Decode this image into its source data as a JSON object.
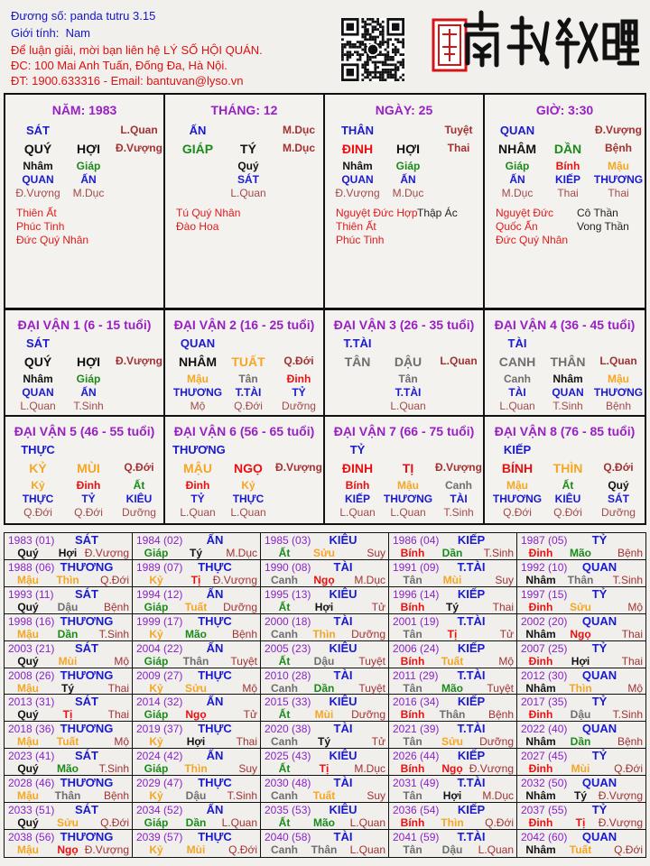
{
  "header": {
    "line1": "Đương số: panda tutru 3.15",
    "gender_label": "Giới tính:",
    "gender": "Nam",
    "contact1": "Để luận giải, mời bạn liên hệ LÝ SỐ HỘI QUÁN.",
    "contact2": "ĐC: 100 Mai Anh Tuấn, Đống Đa, Hà Nội.",
    "contact3": "ĐT: 1900.633316 - Email: bantuvan@lyso.vn",
    "logo_text": "南越數理",
    "qr_icon": "qr-code"
  },
  "colors": {
    "wood": "#1a8a1a",
    "fire": "#e81010",
    "earth": "#f5a623",
    "metal": "#6e6e6e",
    "water": "#111111",
    "title": "#9a1fc4",
    "god": "#1a1ad0"
  },
  "element_of": {
    "giáp": "wood",
    "ất": "wood",
    "dần": "wood",
    "mão": "wood",
    "bính": "fire",
    "đinh": "fire",
    "tị": "fire",
    "ngọ": "fire",
    "mậu": "earth",
    "kỷ": "earth",
    "thìn": "earth",
    "tuất": "earth",
    "sửu": "earth",
    "mùi": "earth",
    "canh": "metal",
    "tân": "metal",
    "thân": "metal",
    "dậu": "metal",
    "nhâm": "water",
    "quý": "water",
    "tý": "water",
    "hợi": "water"
  },
  "pillars": [
    {
      "title": "NĂM: 1983",
      "god": "SÁT",
      "stage_top": "L.Quan",
      "stem": "QUÝ",
      "branch": "HỢI",
      "stage": "Đ.Vượng",
      "hidden": [
        {
          "stem": "Nhâm",
          "god": "QUAN",
          "stage": "Đ.Vượng"
        },
        {
          "stem": "Giáp",
          "god": "ẤN",
          "stage": "M.Dục"
        }
      ],
      "stars": [
        "Thiên Ất",
        "Phúc Tinh",
        "Đức Quý Nhân"
      ],
      "stars2": []
    },
    {
      "title": "THÁNG: 12",
      "god": "ẤN",
      "stage_top": "M.Dục",
      "stem": "GIÁP",
      "branch": "TÝ",
      "stage": "M.Dục",
      "hidden": [
        {
          "stem": "Quý",
          "god": "SÁT",
          "stage": "L.Quan"
        }
      ],
      "stars": [
        "Tú Quý Nhân",
        "Đào Hoa"
      ],
      "stars2": []
    },
    {
      "title": "NGÀY: 25",
      "god": "THÂN",
      "stage_top": "Tuyệt",
      "stem": "ĐINH",
      "branch": "HỢI",
      "stage": "Thai",
      "hidden": [
        {
          "stem": "Nhâm",
          "god": "QUAN",
          "stage": "Đ.Vượng"
        },
        {
          "stem": "Giáp",
          "god": "ẤN",
          "stage": "M.Dục"
        }
      ],
      "stars": [
        "Nguyệt Đức Hợp",
        "Thiên Ất",
        "Phúc Tinh"
      ],
      "stars2": [
        "Thập Ác"
      ]
    },
    {
      "title": "GIỜ: 3:30",
      "god": "QUAN",
      "stage_top": "Đ.Vượng",
      "stem": "NHÂM",
      "branch": "DẦN",
      "stage": "Bệnh",
      "hidden": [
        {
          "stem": "Giáp",
          "god": "ẤN",
          "stage": "M.Dục"
        },
        {
          "stem": "Bính",
          "god": "KIẾP",
          "stage": "Thai"
        },
        {
          "stem": "Mậu",
          "god": "THƯƠNG",
          "stage": "Thai"
        }
      ],
      "stars": [
        "Nguyệt Đức",
        "Quốc Ấn",
        "Đức Quý Nhân"
      ],
      "stars2": [
        "Cô Thần",
        "Vong Thần"
      ]
    }
  ],
  "dai_van": [
    {
      "title": "ĐẠI VẬN 1 (6 - 15 tuổi)",
      "god": "SÁT",
      "stem": "QUÝ",
      "branch": "HỢI",
      "stage": "Đ.Vượng",
      "hidden": [
        {
          "stem": "Nhâm",
          "god": "QUAN",
          "stage": "L.Quan"
        },
        {
          "stem": "Giáp",
          "god": "ẤN",
          "stage": "T.Sinh"
        }
      ]
    },
    {
      "title": "ĐẠI VẬN 2 (16 - 25 tuổi)",
      "god": "QUAN",
      "stem": "NHÂM",
      "branch": "TUẤT",
      "stage": "Q.Đới",
      "hidden": [
        {
          "stem": "Mậu",
          "god": "THƯƠNG",
          "stage": "Mộ"
        },
        {
          "stem": "Tân",
          "god": "T.TÀI",
          "stage": "Q.Đới"
        },
        {
          "stem": "Đinh",
          "god": "TỶ",
          "stage": "Dưỡng"
        }
      ]
    },
    {
      "title": "ĐẠI VẬN 3 (26 - 35 tuổi)",
      "god": "T.TÀI",
      "stem": "TÂN",
      "branch": "DẬU",
      "stage": "L.Quan",
      "hidden": [
        {
          "stem": "Tân",
          "god": "T.TÀI",
          "stage": "L.Quan"
        }
      ]
    },
    {
      "title": "ĐẠI VẬN 4 (36 - 45 tuổi)",
      "god": "TÀI",
      "stem": "CANH",
      "branch": "THÂN",
      "stage": "L.Quan",
      "hidden": [
        {
          "stem": "Canh",
          "god": "TÀI",
          "stage": "L.Quan"
        },
        {
          "stem": "Nhâm",
          "god": "QUAN",
          "stage": "T.Sinh"
        },
        {
          "stem": "Mậu",
          "god": "THƯƠNG",
          "stage": "Bệnh"
        }
      ]
    },
    {
      "title": "ĐẠI VẬN 5 (46 - 55 tuổi)",
      "god": "THỰC",
      "stem": "KỶ",
      "branch": "MÙI",
      "stage": "Q.Đới",
      "hidden": [
        {
          "stem": "Kỷ",
          "god": "THỰC",
          "stage": "Q.Đới"
        },
        {
          "stem": "Đinh",
          "god": "TỶ",
          "stage": "Q.Đới"
        },
        {
          "stem": "Ất",
          "god": "KIÊU",
          "stage": "Dưỡng"
        }
      ]
    },
    {
      "title": "ĐẠI VẬN 6 (56 - 65 tuổi)",
      "god": "THƯƠNG",
      "stem": "MẬU",
      "branch": "NGỌ",
      "stage": "Đ.Vượng",
      "hidden": [
        {
          "stem": "Đinh",
          "god": "TỶ",
          "stage": "L.Quan"
        },
        {
          "stem": "Kỷ",
          "god": "THỰC",
          "stage": "L.Quan"
        }
      ]
    },
    {
      "title": "ĐẠI VẬN 7 (66 - 75 tuổi)",
      "god": "TỶ",
      "stem": "ĐINH",
      "branch": "TỊ",
      "stage": "Đ.Vượng",
      "hidden": [
        {
          "stem": "Bính",
          "god": "KIẾP",
          "stage": "L.Quan"
        },
        {
          "stem": "Mậu",
          "god": "THƯƠNG",
          "stage": "L.Quan"
        },
        {
          "stem": "Canh",
          "god": "TÀI",
          "stage": "T.Sinh"
        }
      ]
    },
    {
      "title": "ĐẠI VẬN 8 (76 - 85 tuổi)",
      "god": "KIẾP",
      "stem": "BÍNH",
      "branch": "THÌN",
      "stage": "Q.Đới",
      "hidden": [
        {
          "stem": "Mậu",
          "god": "THƯƠNG",
          "stage": "Q.Đới"
        },
        {
          "stem": "Ất",
          "god": "KIÊU",
          "stage": "Q.Đới"
        },
        {
          "stem": "Quý",
          "god": "SÁT",
          "stage": "Dưỡng"
        }
      ]
    }
  ],
  "years": [
    [
      "1983 (01)",
      "SÁT",
      "Quý",
      "Hợi",
      "Đ.Vượng"
    ],
    [
      "1984 (02)",
      "ẤN",
      "Giáp",
      "Tý",
      "M.Dục"
    ],
    [
      "1985 (03)",
      "KIÊU",
      "Ất",
      "Sửu",
      "Suy"
    ],
    [
      "1986 (04)",
      "KIẾP",
      "Bính",
      "Dần",
      "T.Sinh"
    ],
    [
      "1987 (05)",
      "TỶ",
      "Đinh",
      "Mão",
      "Bệnh"
    ],
    [
      "1988 (06)",
      "THƯƠNG",
      "Mậu",
      "Thìn",
      "Q.Đới"
    ],
    [
      "1989 (07)",
      "THỰC",
      "Kỷ",
      "Tị",
      "Đ.Vượng"
    ],
    [
      "1990 (08)",
      "TÀI",
      "Canh",
      "Ngọ",
      "M.Dục"
    ],
    [
      "1991 (09)",
      "T.TÀI",
      "Tân",
      "Mùi",
      "Suy"
    ],
    [
      "1992 (10)",
      "QUAN",
      "Nhâm",
      "Thân",
      "T.Sinh"
    ],
    [
      "1993 (11)",
      "SÁT",
      "Quý",
      "Dậu",
      "Bệnh"
    ],
    [
      "1994 (12)",
      "ẤN",
      "Giáp",
      "Tuất",
      "Dưỡng"
    ],
    [
      "1995 (13)",
      "KIÊU",
      "Ất",
      "Hợi",
      "Tử"
    ],
    [
      "1996 (14)",
      "KIẾP",
      "Bính",
      "Tý",
      "Thai"
    ],
    [
      "1997 (15)",
      "TỶ",
      "Đinh",
      "Sửu",
      "Mộ"
    ],
    [
      "1998 (16)",
      "THƯƠNG",
      "Mậu",
      "Dần",
      "T.Sinh"
    ],
    [
      "1999 (17)",
      "THỰC",
      "Kỷ",
      "Mão",
      "Bệnh"
    ],
    [
      "2000 (18)",
      "TÀI",
      "Canh",
      "Thìn",
      "Dưỡng"
    ],
    [
      "2001 (19)",
      "T.TÀI",
      "Tân",
      "Tị",
      "Tử"
    ],
    [
      "2002 (20)",
      "QUAN",
      "Nhâm",
      "Ngọ",
      "Thai"
    ],
    [
      "2003 (21)",
      "SÁT",
      "Quý",
      "Mùi",
      "Mộ"
    ],
    [
      "2004 (22)",
      "ẤN",
      "Giáp",
      "Thân",
      "Tuyệt"
    ],
    [
      "2005 (23)",
      "KIÊU",
      "Ất",
      "Dậu",
      "Tuyệt"
    ],
    [
      "2006 (24)",
      "KIẾP",
      "Bính",
      "Tuất",
      "Mộ"
    ],
    [
      "2007 (25)",
      "TỶ",
      "Đinh",
      "Hợi",
      "Thai"
    ],
    [
      "2008 (26)",
      "THƯƠNG",
      "Mậu",
      "Tý",
      "Thai"
    ],
    [
      "2009 (27)",
      "THỰC",
      "Kỷ",
      "Sửu",
      "Mộ"
    ],
    [
      "2010 (28)",
      "TÀI",
      "Canh",
      "Dần",
      "Tuyệt"
    ],
    [
      "2011 (29)",
      "T.TÀI",
      "Tân",
      "Mão",
      "Tuyệt"
    ],
    [
      "2012 (30)",
      "QUAN",
      "Nhâm",
      "Thìn",
      "Mộ"
    ],
    [
      "2013 (31)",
      "SÁT",
      "Quý",
      "Tị",
      "Thai"
    ],
    [
      "2014 (32)",
      "ẤN",
      "Giáp",
      "Ngọ",
      "Tử"
    ],
    [
      "2015 (33)",
      "KIÊU",
      "Ất",
      "Mùi",
      "Dưỡng"
    ],
    [
      "2016 (34)",
      "KIẾP",
      "Bính",
      "Thân",
      "Bệnh"
    ],
    [
      "2017 (35)",
      "TỶ",
      "Đinh",
      "Dậu",
      "T.Sinh"
    ],
    [
      "2018 (36)",
      "THƯƠNG",
      "Mậu",
      "Tuất",
      "Mộ"
    ],
    [
      "2019 (37)",
      "THỰC",
      "Kỷ",
      "Hợi",
      "Thai"
    ],
    [
      "2020 (38)",
      "TÀI",
      "Canh",
      "Tý",
      "Tử"
    ],
    [
      "2021 (39)",
      "T.TÀI",
      "Tân",
      "Sửu",
      "Dưỡng"
    ],
    [
      "2022 (40)",
      "QUAN",
      "Nhâm",
      "Dần",
      "Bệnh"
    ],
    [
      "2023 (41)",
      "SÁT",
      "Quý",
      "Mão",
      "T.Sinh"
    ],
    [
      "2024 (42)",
      "ẤN",
      "Giáp",
      "Thìn",
      "Suy"
    ],
    [
      "2025 (43)",
      "KIÊU",
      "Ất",
      "Tị",
      "M.Dục"
    ],
    [
      "2026 (44)",
      "KIẾP",
      "Bính",
      "Ngọ",
      "Đ.Vượng"
    ],
    [
      "2027 (45)",
      "TỶ",
      "Đinh",
      "Mùi",
      "Q.Đới"
    ],
    [
      "2028 (46)",
      "THƯƠNG",
      "Mậu",
      "Thân",
      "Bệnh"
    ],
    [
      "2029 (47)",
      "THỰC",
      "Kỷ",
      "Dậu",
      "T.Sinh"
    ],
    [
      "2030 (48)",
      "TÀI",
      "Canh",
      "Tuất",
      "Suy"
    ],
    [
      "2031 (49)",
      "T.TÀI",
      "Tân",
      "Hợi",
      "M.Dục"
    ],
    [
      "2032 (50)",
      "QUAN",
      "Nhâm",
      "Tý",
      "Đ.Vượng"
    ],
    [
      "2033 (51)",
      "SÁT",
      "Quý",
      "Sửu",
      "Q.Đới"
    ],
    [
      "2034 (52)",
      "ẤN",
      "Giáp",
      "Dần",
      "L.Quan"
    ],
    [
      "2035 (53)",
      "KIÊU",
      "Ất",
      "Mão",
      "L.Quan"
    ],
    [
      "2036 (54)",
      "KIẾP",
      "Bính",
      "Thìn",
      "Q.Đới"
    ],
    [
      "2037 (55)",
      "TỶ",
      "Đinh",
      "Tị",
      "Đ.Vượng"
    ],
    [
      "2038 (56)",
      "THƯƠNG",
      "Mậu",
      "Ngọ",
      "Đ.Vượng"
    ],
    [
      "2039 (57)",
      "THỰC",
      "Kỷ",
      "Mùi",
      "Q.Đới"
    ],
    [
      "2040 (58)",
      "TÀI",
      "Canh",
      "Thân",
      "L.Quan"
    ],
    [
      "2041 (59)",
      "T.TÀI",
      "Tân",
      "Dậu",
      "L.Quan"
    ],
    [
      "2042 (60)",
      "QUAN",
      "Nhâm",
      "Tuất",
      "Q.Đới"
    ]
  ]
}
